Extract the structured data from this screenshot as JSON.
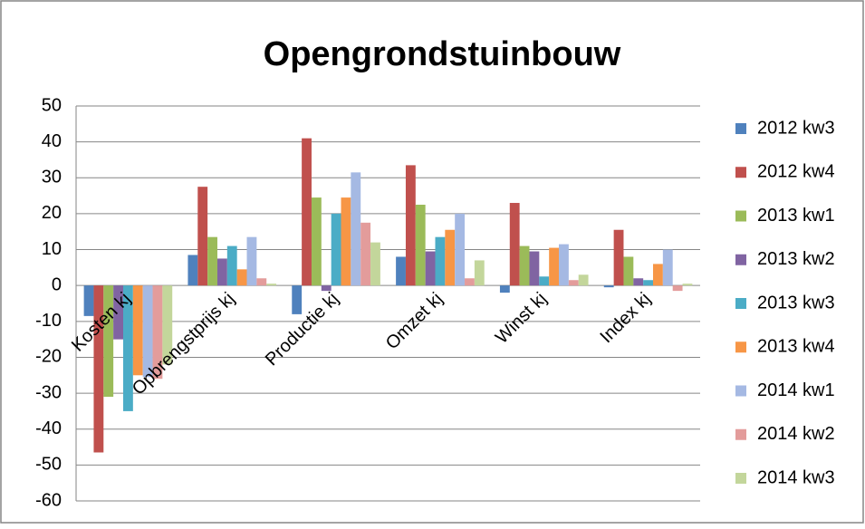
{
  "chart_data": {
    "type": "bar",
    "title": "Opengrondstuinbouw",
    "categories": [
      "Kosten kj",
      "Opbrengstprijs kj",
      "Productie kj",
      "Omzet kj",
      "Winst kj",
      "Index kj"
    ],
    "series": [
      {
        "name": "2012 kw3",
        "color": "#4f81bd",
        "values": [
          -8.5,
          8.5,
          -8,
          8,
          -2,
          -0.5
        ]
      },
      {
        "name": "2012 kw4",
        "color": "#c0504d",
        "values": [
          -46.5,
          27.5,
          41,
          33.5,
          23,
          15.5
        ]
      },
      {
        "name": "2013 kw1",
        "color": "#9bbb59",
        "values": [
          -31,
          13.5,
          24.5,
          22.5,
          11,
          8
        ]
      },
      {
        "name": "2013 kw2",
        "color": "#8064a2",
        "values": [
          -15,
          7.5,
          -1.5,
          9.5,
          9.5,
          2
        ]
      },
      {
        "name": "2013 kw3",
        "color": "#4bacc6",
        "values": [
          -35,
          11,
          20,
          13.5,
          2.5,
          1.5
        ]
      },
      {
        "name": "2013 kw4",
        "color": "#f79646",
        "values": [
          -25,
          4.5,
          24.5,
          15.5,
          10.5,
          6
        ]
      },
      {
        "name": "2014 kw1",
        "color": "#a5b9e3",
        "values": [
          -25.5,
          13.5,
          31.5,
          20,
          11.5,
          10
        ]
      },
      {
        "name": "2014 kw2",
        "color": "#e39c9b",
        "values": [
          -26,
          2,
          17.5,
          2,
          1.5,
          -1.5
        ]
      },
      {
        "name": "2014 kw3",
        "color": "#c3d69b",
        "values": [
          -22,
          0.5,
          12,
          7,
          3,
          0.5
        ]
      }
    ],
    "ylim": [
      -60,
      50
    ],
    "yticks": [
      -60,
      -50,
      -40,
      -30,
      -20,
      -10,
      0,
      10,
      20,
      30,
      40,
      50
    ],
    "grid": true,
    "legend": "right"
  }
}
